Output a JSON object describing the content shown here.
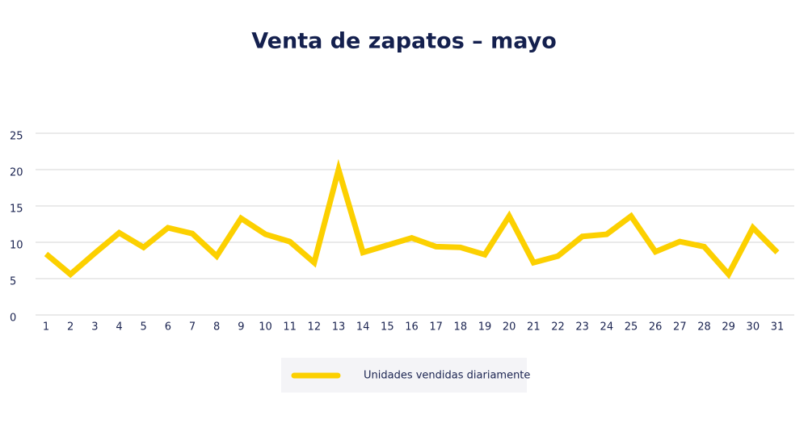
{
  "chart_data": {
    "type": "line",
    "title": "Venta de zapatos – mayo",
    "categories": [
      "1",
      "2",
      "3",
      "4",
      "5",
      "6",
      "7",
      "8",
      "9",
      "10",
      "11",
      "12",
      "13",
      "14",
      "15",
      "16",
      "17",
      "18",
      "19",
      "20",
      "21",
      "22",
      "23",
      "24",
      "25",
      "26",
      "27",
      "28",
      "29",
      "30",
      "31"
    ],
    "series": [
      {
        "name": "Unidades vendidas diariamente",
        "color": "#fcd000",
        "values": [
          8.4,
          5.6,
          8.5,
          11.3,
          9.3,
          12,
          11.2,
          8.1,
          13.3,
          11.1,
          10.1,
          7.2,
          20,
          8.6,
          9.6,
          10.6,
          9.4,
          9.3,
          8.3,
          13.6,
          7.2,
          8.1,
          10.8,
          11.1,
          13.6,
          8.7,
          10.1,
          9.4,
          5.6,
          12,
          8.6
        ]
      }
    ],
    "ylim": [
      0,
      25
    ],
    "yticks": [
      0,
      5,
      10,
      15,
      20,
      25
    ],
    "grid": true
  }
}
